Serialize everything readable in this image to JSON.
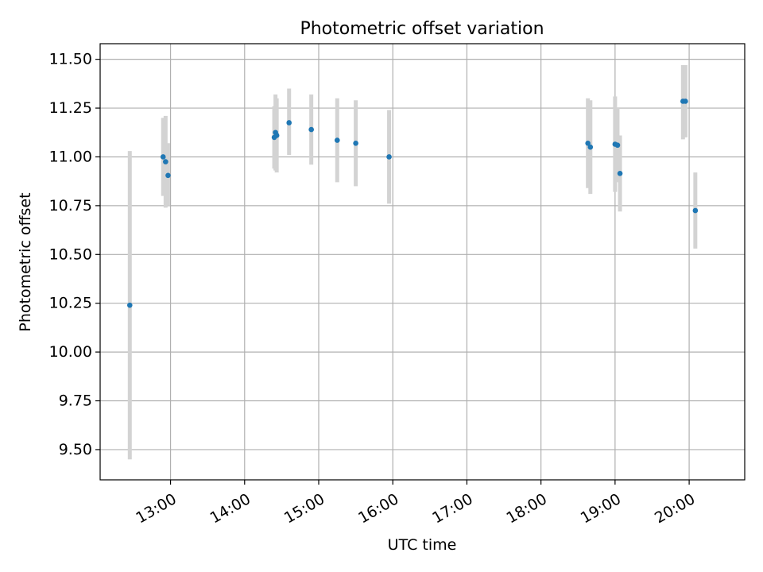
{
  "chart_data": {
    "type": "scatter",
    "title": "Photometric offset variation",
    "xlabel": "UTC time",
    "ylabel": "Photometric offset",
    "x_ticks": [
      "13:00",
      "14:00",
      "15:00",
      "16:00",
      "17:00",
      "18:00",
      "19:00",
      "20:00"
    ],
    "y_ticks": [
      "9.50",
      "9.75",
      "10.00",
      "10.25",
      "10.50",
      "10.75",
      "11.00",
      "11.25",
      "11.50"
    ],
    "xlim": [
      "12:03",
      "20:45"
    ],
    "ylim": [
      9.345,
      11.58
    ],
    "grid": true,
    "point_color": "#1f77b4",
    "errorbar_color": "#d3d3d3",
    "points": [
      {
        "time": "12:27",
        "y": 10.24,
        "low": 9.45,
        "high": 11.03
      },
      {
        "time": "12:54",
        "y": 11.0,
        "low": 10.8,
        "high": 11.2
      },
      {
        "time": "12:56",
        "y": 10.975,
        "low": 10.74,
        "high": 11.21
      },
      {
        "time": "12:58",
        "y": 10.905,
        "low": 10.75,
        "high": 11.07
      },
      {
        "time": "14:24",
        "y": 11.1,
        "low": 10.94,
        "high": 11.26
      },
      {
        "time": "14:25",
        "y": 11.125,
        "low": 10.93,
        "high": 11.32
      },
      {
        "time": "14:26",
        "y": 11.11,
        "low": 10.92,
        "high": 11.3
      },
      {
        "time": "14:36",
        "y": 11.175,
        "low": 11.01,
        "high": 11.35
      },
      {
        "time": "14:54",
        "y": 11.14,
        "low": 10.96,
        "high": 11.32
      },
      {
        "time": "15:15",
        "y": 11.085,
        "low": 10.87,
        "high": 11.3
      },
      {
        "time": "15:30",
        "y": 11.07,
        "low": 10.85,
        "high": 11.29
      },
      {
        "time": "15:57",
        "y": 11.0,
        "low": 10.76,
        "high": 11.24
      },
      {
        "time": "18:38",
        "y": 11.07,
        "low": 10.84,
        "high": 11.3
      },
      {
        "time": "18:40",
        "y": 11.05,
        "low": 10.81,
        "high": 11.29
      },
      {
        "time": "19:00",
        "y": 11.065,
        "low": 10.82,
        "high": 11.31
      },
      {
        "time": "19:02",
        "y": 11.06,
        "low": 10.87,
        "high": 11.25
      },
      {
        "time": "19:04",
        "y": 10.915,
        "low": 10.72,
        "high": 11.11
      },
      {
        "time": "19:55",
        "y": 11.285,
        "low": 11.09,
        "high": 11.47
      },
      {
        "time": "19:57",
        "y": 11.285,
        "low": 11.1,
        "high": 11.47
      },
      {
        "time": "20:05",
        "y": 10.725,
        "low": 10.53,
        "high": 10.92
      }
    ]
  }
}
